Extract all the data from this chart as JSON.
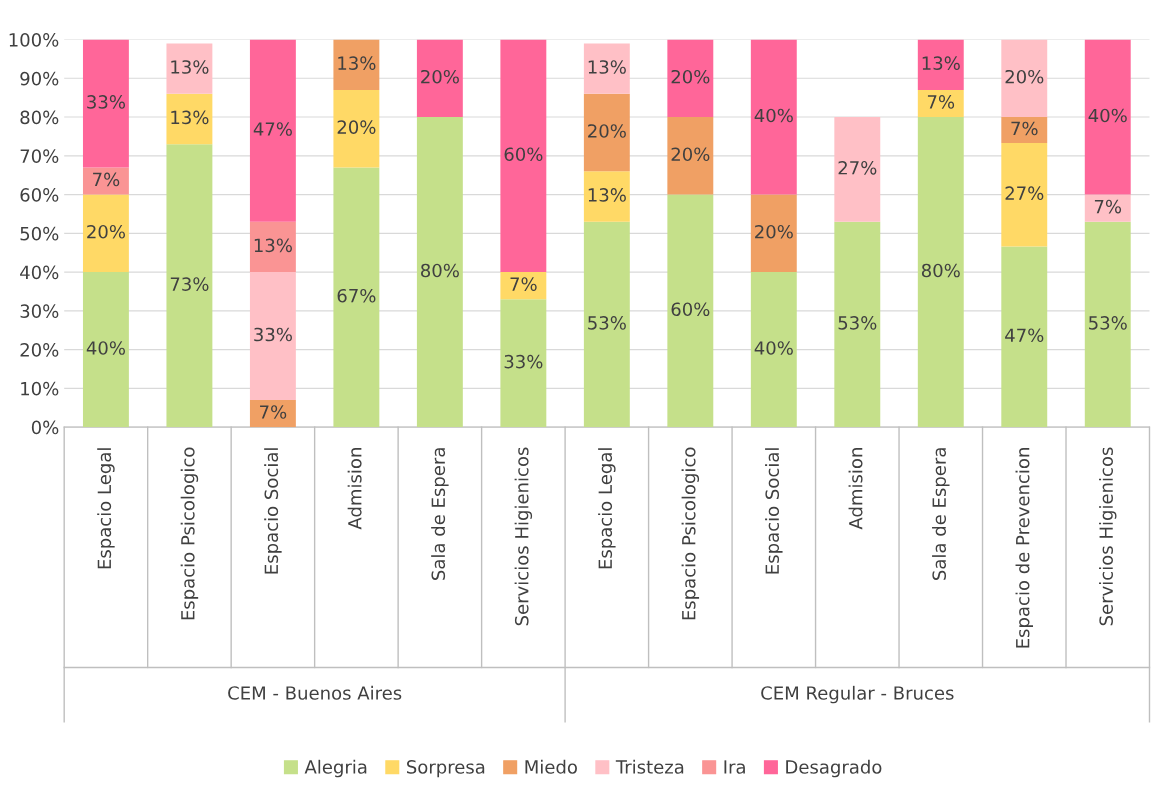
{
  "chart_data": {
    "type": "bar",
    "stacked": true,
    "categories": [
      "Espacio Legal",
      "Espacio Psicologico",
      "Espacio Social",
      "Admision",
      "Sala de Espera",
      "Servicios Higienicos",
      "Espacio Legal",
      "Espacio Psicologico",
      "Espacio Social",
      "Admision",
      "Sala de Espera",
      "Espacio de Prevencion",
      "Servicios Higienicos"
    ],
    "series": [
      {
        "name": "Alegria",
        "color": "#c5e08a",
        "values": [
          40,
          73,
          0,
          67,
          80,
          33,
          53,
          60,
          40,
          53,
          80,
          46.6,
          53
        ],
        "value_labels": [
          "40%",
          "73%",
          null,
          "67%",
          "80%",
          "33%",
          "53%",
          "60%",
          "40%",
          "53%",
          "80%",
          "47%",
          "53%"
        ]
      },
      {
        "name": "Sorpresa",
        "color": "#ffd966",
        "values": [
          20,
          13,
          0,
          20,
          0,
          7,
          13,
          0,
          0,
          0,
          7,
          26.7,
          0
        ],
        "value_labels": [
          "20%",
          "13%",
          null,
          "20%",
          null,
          "7%",
          "13%",
          null,
          null,
          null,
          "7%",
          "27%",
          null
        ]
      },
      {
        "name": "Miedo",
        "color": "#f0a064",
        "values": [
          0,
          0,
          7,
          13,
          0,
          0,
          20,
          20,
          20,
          0,
          0,
          6.7,
          0
        ],
        "value_labels": [
          null,
          null,
          "7%",
          "13%",
          null,
          null,
          "20%",
          "20%",
          "20%",
          null,
          null,
          "7%",
          null
        ]
      },
      {
        "name": "Tristeza",
        "color": "#ffc0c6",
        "values": [
          0,
          13,
          33,
          0,
          0,
          0,
          13,
          0,
          0,
          27,
          0,
          20,
          7
        ],
        "value_labels": [
          null,
          "13%",
          "33%",
          null,
          null,
          null,
          "13%",
          null,
          null,
          "27%",
          null,
          "20%",
          "7%"
        ]
      },
      {
        "name": "Ira",
        "color": "#fa9494",
        "values": [
          7,
          0,
          13,
          0,
          0,
          0,
          0,
          0,
          0,
          0,
          0,
          0,
          0
        ],
        "value_labels": [
          "7%",
          null,
          "13%",
          null,
          null,
          null,
          null,
          null,
          null,
          null,
          null,
          null,
          null
        ]
      },
      {
        "name": "Desagrado",
        "color": "#ff6699",
        "values": [
          33,
          0,
          47,
          0,
          20,
          60,
          0,
          20,
          40,
          0,
          13,
          0,
          40
        ],
        "value_labels": [
          "33%",
          null,
          "47%",
          null,
          "20%",
          "60%",
          null,
          "20%",
          "40%",
          null,
          "13%",
          null,
          "40%"
        ]
      }
    ],
    "ylim": [
      0,
      100
    ],
    "yticks": [
      {
        "value": 0,
        "label": "0%"
      },
      {
        "value": 10,
        "label": "10%"
      },
      {
        "value": 20,
        "label": "20%"
      },
      {
        "value": 30,
        "label": "30%"
      },
      {
        "value": 40,
        "label": "40%"
      },
      {
        "value": 50,
        "label": "50%"
      },
      {
        "value": 60,
        "label": "60%"
      },
      {
        "value": 70,
        "label": "70%"
      },
      {
        "value": 80,
        "label": "80%"
      },
      {
        "value": 90,
        "label": "90%"
      },
      {
        "value": 100,
        "label": "100%"
      }
    ],
    "grid": "y",
    "legend": "bottom",
    "annotations": [
      "CEM - Buenos Aires",
      "CEM Regular - Bruces"
    ]
  }
}
